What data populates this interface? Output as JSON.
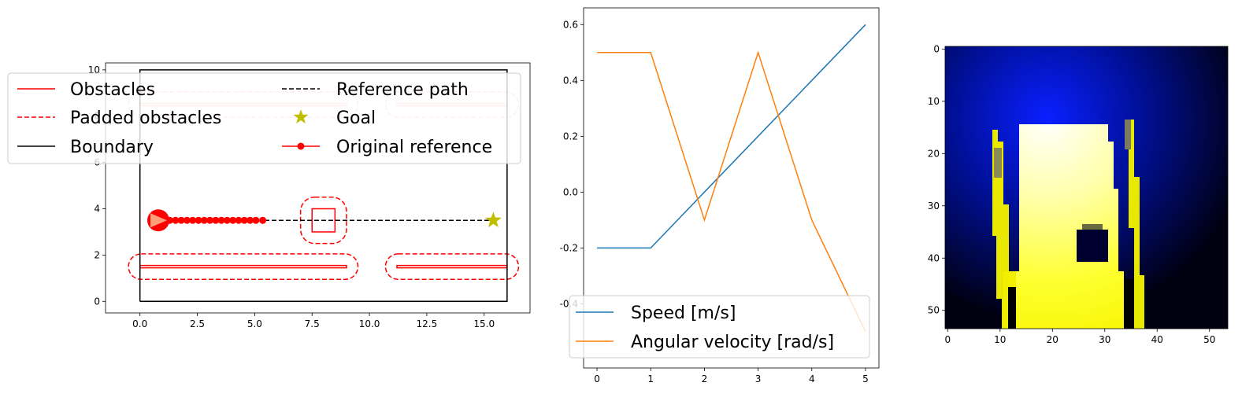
{
  "chart_data": [
    {
      "type": "scatter",
      "title": "",
      "xlim": [
        -1.5,
        17
      ],
      "ylim": [
        -0.5,
        10.3
      ],
      "xticks": [
        "0.0",
        "2.5",
        "5.0",
        "7.5",
        "10.0",
        "12.5",
        "15.0"
      ],
      "xtick_values": [
        0,
        2.5,
        5,
        7.5,
        10,
        12.5,
        15
      ],
      "yticks": [
        "0",
        "2",
        "4",
        "6",
        "8",
        "10"
      ],
      "ytick_values": [
        0,
        2,
        4,
        6,
        8,
        10
      ],
      "boundary": [
        [
          0,
          0
        ],
        [
          16,
          0
        ],
        [
          16,
          10
        ],
        [
          0,
          10
        ],
        [
          0,
          0
        ]
      ],
      "obstacles": [
        {
          "x0": 0,
          "x1": 9,
          "y0": 1.45,
          "y1": 1.55
        },
        {
          "x0": 11.2,
          "x1": 16,
          "y0": 1.45,
          "y1": 1.55
        },
        {
          "x0": 7.5,
          "x1": 8.5,
          "y0": 3.0,
          "y1": 4.0
        },
        {
          "x0": 0,
          "x1": 9,
          "y0": 8.45,
          "y1": 8.55
        },
        {
          "x0": 11.2,
          "x1": 16,
          "y0": 8.45,
          "y1": 8.55
        }
      ],
      "padded_obstacles": [
        {
          "x0": -0.5,
          "x1": 9.5,
          "y0": 0.95,
          "y1": 2.05
        },
        {
          "x0": 10.7,
          "x1": 16.5,
          "y0": 0.95,
          "y1": 2.05
        },
        {
          "x0": 7.0,
          "x1": 9.0,
          "y0": 2.5,
          "y1": 4.5
        },
        {
          "x0": -0.5,
          "x1": 9.5,
          "y0": 7.95,
          "y1": 9.05
        },
        {
          "x0": 10.7,
          "x1": 16.5,
          "y0": 7.95,
          "y1": 9.05
        }
      ],
      "reference_path": {
        "x": [
          0.8,
          15.4
        ],
        "y": [
          3.5,
          3.5
        ]
      },
      "goal": {
        "x": 15.4,
        "y": 3.5
      },
      "robot": {
        "x": 0.8,
        "y": 3.5
      },
      "original_reference": {
        "x": [
          0.8,
          1.3,
          1.55,
          1.8,
          2.05,
          2.3,
          2.55,
          2.8,
          3.05,
          3.3,
          3.55,
          3.8,
          4.05,
          4.3,
          4.55,
          4.8,
          5.05,
          5.35
        ],
        "y": [
          3.5,
          3.5,
          3.5,
          3.5,
          3.5,
          3.5,
          3.5,
          3.5,
          3.5,
          3.5,
          3.5,
          3.5,
          3.5,
          3.5,
          3.5,
          3.5,
          3.5,
          3.5
        ]
      },
      "legend": [
        {
          "label": "Obstacles",
          "style": "solid",
          "color": "#ff0000",
          "marker": "none"
        },
        {
          "label": "Reference path",
          "style": "dashed",
          "color": "#000000",
          "marker": "none"
        },
        {
          "label": "Padded obstacles",
          "style": "dashed",
          "color": "#ff0000",
          "marker": "none"
        },
        {
          "label": "Goal",
          "style": "none",
          "color": "#bfbf00",
          "marker": "star"
        },
        {
          "label": "Boundary",
          "style": "solid",
          "color": "#000000",
          "marker": "none"
        },
        {
          "label": "Original reference",
          "style": "solid",
          "color": "#ff0000",
          "marker": "dot"
        }
      ],
      "legend_placement": "upper-left outside"
    },
    {
      "type": "line",
      "title": "",
      "x": [
        0,
        1,
        2,
        3,
        4,
        5
      ],
      "xlim": [
        -0.25,
        5.25
      ],
      "ylim": [
        -0.63,
        0.66
      ],
      "xticks": [
        "0",
        "1",
        "2",
        "3",
        "4",
        "5"
      ],
      "xtick_values": [
        0,
        1,
        2,
        3,
        4,
        5
      ],
      "yticks": [
        "-0.4",
        "-0.2",
        "0.0",
        "0.2",
        "0.4",
        "0.6"
      ],
      "ytick_values": [
        -0.4,
        -0.2,
        0,
        0.2,
        0.4,
        0.6
      ],
      "series": [
        {
          "name": "Speed [m/s]",
          "color": "#1f77b4",
          "values": [
            -0.2,
            -0.2,
            0.0,
            0.2,
            0.4,
            0.6
          ]
        },
        {
          "name": "Angular velocity [rad/s]",
          "color": "#ff7f0e",
          "values": [
            0.5,
            0.5,
            -0.1,
            0.5,
            -0.1,
            -0.5
          ]
        }
      ],
      "legend_placement": "lower-left"
    },
    {
      "type": "heatmap",
      "title": "",
      "xlim": [
        -0.5,
        53.5
      ],
      "ylim": [
        53.5,
        -0.5
      ],
      "xticks": [
        "0",
        "10",
        "20",
        "30",
        "40",
        "50"
      ],
      "xtick_values": [
        0,
        10,
        20,
        30,
        40,
        50
      ],
      "yticks": [
        "0",
        "10",
        "20",
        "30",
        "40",
        "50"
      ],
      "ytick_values": [
        0,
        10,
        20,
        30,
        40,
        50
      ],
      "description_colors": {
        "background": "#0000ff",
        "free": "#ffff00",
        "dark": "#000000"
      }
    }
  ]
}
